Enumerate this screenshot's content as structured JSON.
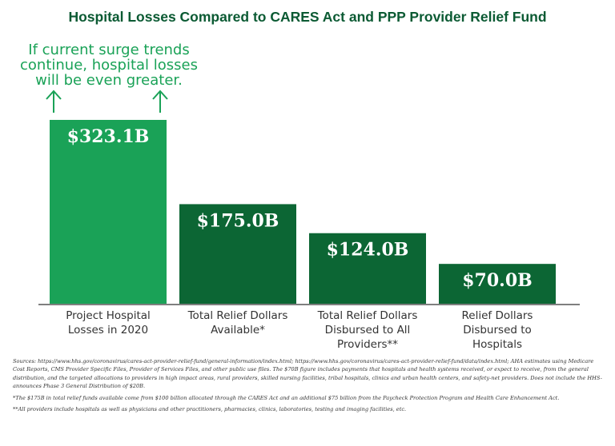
{
  "colors": {
    "title": "#0b5a33",
    "bar_highlight": "#1aa257",
    "bar_dark": "#0c6634",
    "bar_label": "#ffffff",
    "axis": "#555555",
    "category_text": "#333333",
    "annotation": "#1aa257"
  },
  "annotation": {
    "lines": [
      "If current surge trends",
      "continue, hospital losses",
      "will be even greater."
    ],
    "icon": "arrow-up-icon"
  },
  "chart_data": {
    "type": "bar",
    "title": "Hospital Losses Compared to CARES Act and PPP Provider Relief Fund",
    "xlabel": "",
    "ylabel": "",
    "ylim": [
      0,
      323.1
    ],
    "grid": false,
    "legend": "none",
    "categories": [
      [
        "Project Hospital",
        "Losses in 2020"
      ],
      [
        "Total Relief Dollars",
        "Available*"
      ],
      [
        "Total Relief Dollars",
        "Disbursed to All",
        "Providers**"
      ],
      [
        "Relief Dollars",
        "Disbursed to",
        "Hospitals"
      ]
    ],
    "values": [
      323.1,
      175.0,
      124.0,
      70.0
    ],
    "value_labels": [
      "$323.1B",
      "$175.0B",
      "$124.0B",
      "$70.0B"
    ]
  },
  "footnotes": {
    "sources": "Sources: https://www.hhs.gov/coronavirus/cares-act-provider-relief-fund/general-information/index.html; https://www.hhs.gov/coronavirus/cares-act-provider-relief-fund/data/index.html; AHA estimates using Medicare Cost Reports, CMS Provider Specific Files, Provider of Services Files, and other public use files. The $70B figure includes payments that hospitals and health systems received, or expect to receive, from the general distribution, and the targeted allocations to providers in high impact areas, rural providers, skilled nursing facilities, tribal hospitals, clinics and urban health centers, and safety-net providers. Does not include the HHS-announces Phase 3 General Distribution of $20B.",
    "note1": "*The $175B in total relief funds available come from $100 billion allocated through the CARES Act and an additional $75 billion from the Paycheck Protection Program and Health Care Enhancement Act.",
    "note2": "**All providers include hospitals as well as physicians and other practitioners, pharmacies, clinics, laboratories, testing and imaging facilities, etc."
  }
}
